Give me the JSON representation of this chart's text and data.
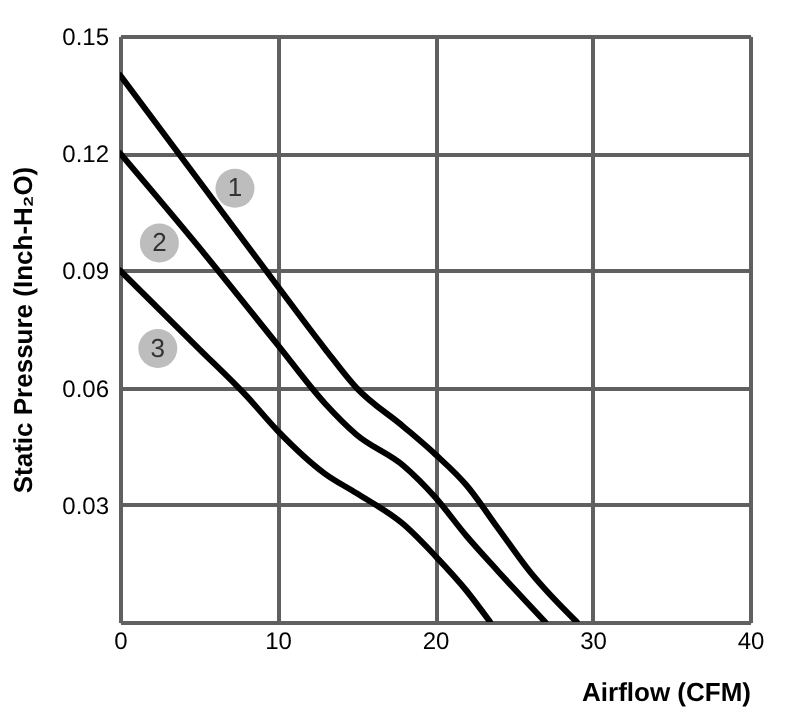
{
  "chart_data": {
    "type": "line",
    "xlabel": "Airflow (CFM)",
    "ylabel": "Static Pressure (Inch-H₂O)",
    "xlim": [
      0,
      40
    ],
    "ylim": [
      0,
      0.15
    ],
    "xticks": [
      0,
      10,
      20,
      30,
      40
    ],
    "yticks": [
      {
        "value": 0,
        "label": null
      },
      0.03,
      0.06,
      0.09,
      0.12,
      0.15
    ],
    "grid": true,
    "line_style": "solid",
    "marker": "none",
    "series": [
      {
        "color": "#000000",
        "x": [
          0,
          5,
          10,
          13,
          15,
          18,
          20,
          22,
          24,
          26,
          29
        ],
        "values": [
          0.14,
          0.113,
          0.086,
          0.07,
          0.06,
          0.05,
          0.043,
          0.035,
          0.024,
          0.013,
          0
        ]
      },
      {
        "color": "#000000",
        "x": [
          0,
          5,
          10,
          13,
          15,
          18,
          20,
          22,
          24,
          27
        ],
        "values": [
          0.12,
          0.096,
          0.071,
          0.056,
          0.048,
          0.04,
          0.032,
          0.022,
          0.013,
          0
        ]
      },
      {
        "color": "#000000",
        "x": [
          0,
          5,
          8,
          10,
          13,
          15,
          18,
          20,
          22,
          23.5
        ],
        "values": [
          0.09,
          0.07,
          0.058,
          0.049,
          0.038,
          0.033,
          0.025,
          0.017,
          0.008,
          0
        ]
      }
    ],
    "annotations": [
      {
        "text": "1",
        "x": 7.3,
        "y": 0.111
      },
      {
        "text": "2",
        "x": 2.5,
        "y": 0.097
      },
      {
        "text": "3",
        "x": 2.4,
        "y": 0.07
      }
    ]
  }
}
